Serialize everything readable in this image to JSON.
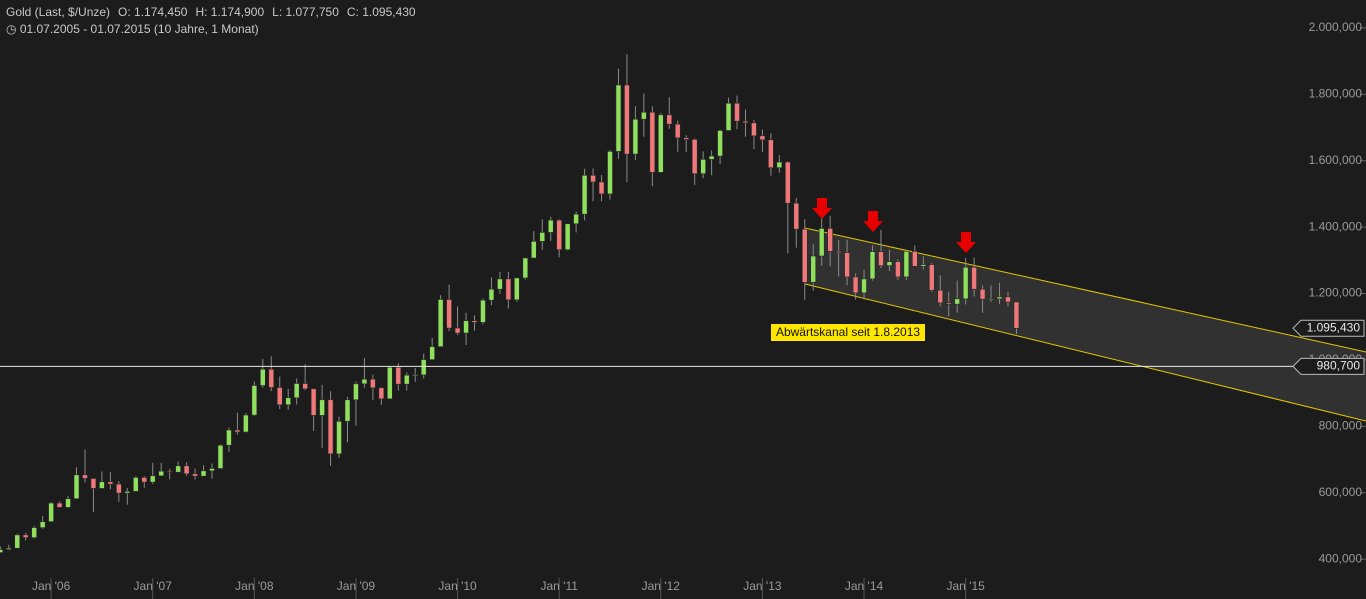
{
  "chart_data": {
    "type": "candlestick",
    "title": "Gold (Last, $/Unze)",
    "header_values": [
      "O: 1.174,450",
      "H: 1.174,900",
      "L: 1.077,750",
      "C: 1.095,430"
    ],
    "subtitle": "01.07.2005 - 01.07.2015 (10 Jahre, 1 Monat)",
    "annotation": "Abwärtskanal seit 1.8.2013",
    "x": [
      "2005-07",
      "2005-08",
      "2005-09",
      "2005-10",
      "2005-11",
      "2005-12",
      "2006-01",
      "2006-02",
      "2006-03",
      "2006-04",
      "2006-05",
      "2006-06",
      "2006-07",
      "2006-08",
      "2006-09",
      "2006-10",
      "2006-11",
      "2006-12",
      "2007-01",
      "2007-02",
      "2007-03",
      "2007-04",
      "2007-05",
      "2007-06",
      "2007-07",
      "2007-08",
      "2007-09",
      "2007-10",
      "2007-11",
      "2007-12",
      "2008-01",
      "2008-02",
      "2008-03",
      "2008-04",
      "2008-05",
      "2008-06",
      "2008-07",
      "2008-08",
      "2008-09",
      "2008-10",
      "2008-11",
      "2008-12",
      "2009-01",
      "2009-02",
      "2009-03",
      "2009-04",
      "2009-05",
      "2009-06",
      "2009-07",
      "2009-08",
      "2009-09",
      "2009-10",
      "2009-11",
      "2009-12",
      "2010-01",
      "2010-02",
      "2010-03",
      "2010-04",
      "2010-05",
      "2010-06",
      "2010-07",
      "2010-08",
      "2010-09",
      "2010-10",
      "2010-11",
      "2010-12",
      "2011-01",
      "2011-02",
      "2011-03",
      "2011-04",
      "2011-05",
      "2011-06",
      "2011-07",
      "2011-08",
      "2011-09",
      "2011-10",
      "2011-11",
      "2011-12",
      "2012-01",
      "2012-02",
      "2012-03",
      "2012-04",
      "2012-05",
      "2012-06",
      "2012-07",
      "2012-08",
      "2012-09",
      "2012-10",
      "2012-11",
      "2012-12",
      "2013-01",
      "2013-02",
      "2013-03",
      "2013-04",
      "2013-05",
      "2013-06",
      "2013-07",
      "2013-08",
      "2013-09",
      "2013-10",
      "2013-11",
      "2013-12",
      "2014-01",
      "2014-02",
      "2014-03",
      "2014-04",
      "2014-05",
      "2014-06",
      "2014-07",
      "2014-08",
      "2014-09",
      "2014-10",
      "2014-11",
      "2014-12",
      "2015-01",
      "2015-02",
      "2015-03",
      "2015-04",
      "2015-05",
      "2015-06",
      "2015-07"
    ],
    "open": [
      420,
      429,
      433,
      473,
      465,
      495,
      513,
      569,
      556,
      582,
      654,
      643,
      613,
      633,
      626,
      599,
      604,
      646,
      632,
      651,
      665,
      662,
      681,
      657,
      650,
      666,
      673,
      743,
      789,
      783,
      834,
      923,
      972,
      917,
      865,
      886,
      929,
      913,
      833,
      880,
      717,
      815,
      880,
      928,
      942,
      916,
      883,
      978,
      927,
      954,
      955,
      1001,
      1040,
      1182,
      1096,
      1081,
      1118,
      1113,
      1180,
      1213,
      1244,
      1181,
      1247,
      1307,
      1357,
      1384,
      1421,
      1332,
      1410,
      1439,
      1556,
      1536,
      1500,
      1628,
      1828,
      1620,
      1725,
      1746,
      1565,
      1738,
      1710,
      1669,
      1664,
      1561,
      1604,
      1614,
      1691,
      1773,
      1719,
      1714,
      1675,
      1663,
      1579,
      1596,
      1472,
      1394,
      1234,
      1313,
      1396,
      1327,
      1323,
      1250,
      1202,
      1244,
      1326,
      1284,
      1296,
      1250,
      1327,
      1282,
      1287,
      1210,
      1172,
      1168,
      1184,
      1279,
      1213,
      1183,
      1184,
      1190,
      1174.45
    ],
    "high": [
      439,
      443,
      477,
      479,
      500,
      530,
      572,
      574,
      590,
      677,
      730,
      640,
      664,
      663,
      635,
      614,
      650,
      650,
      690,
      690,
      672,
      694,
      692,
      673,
      683,
      688,
      746,
      796,
      841,
      840,
      935,
      1003,
      1011,
      950,
      913,
      944,
      987,
      915,
      925,
      906,
      829,
      889,
      935,
      1006,
      956,
      918,
      980,
      990,
      962,
      976,
      1019,
      1066,
      1195,
      1227,
      1161,
      1142,
      1134,
      1185,
      1249,
      1265,
      1265,
      1248,
      1307,
      1388,
      1424,
      1431,
      1424,
      1411,
      1447,
      1576,
      1577,
      1557,
      1632,
      1877,
      1921,
      1764,
      1802,
      1764,
      1744,
      1791,
      1721,
      1677,
      1667,
      1628,
      1631,
      1693,
      1790,
      1796,
      1754,
      1723,
      1694,
      1683,
      1617,
      1598,
      1488,
      1424,
      1348,
      1434,
      1434,
      1361,
      1362,
      1261,
      1271,
      1345,
      1392,
      1332,
      1303,
      1332,
      1345,
      1312,
      1292,
      1255,
      1205,
      1239,
      1307,
      1308,
      1224,
      1224,
      1232,
      1205,
      1174.9
    ],
    "low": [
      418,
      427,
      432,
      456,
      462,
      492,
      512,
      554,
      554,
      581,
      631,
      542,
      613,
      611,
      573,
      564,
      604,
      615,
      626,
      650,
      640,
      661,
      651,
      640,
      649,
      642,
      673,
      723,
      775,
      781,
      831,
      916,
      906,
      852,
      850,
      866,
      909,
      786,
      735,
      681,
      705,
      752,
      802,
      916,
      879,
      865,
      882,
      908,
      908,
      934,
      944,
      1000,
      1040,
      1087,
      1075,
      1045,
      1088,
      1107,
      1165,
      1199,
      1155,
      1175,
      1242,
      1315,
      1332,
      1358,
      1309,
      1330,
      1384,
      1420,
      1478,
      1478,
      1483,
      1605,
      1535,
      1602,
      1672,
      1523,
      1563,
      1696,
      1627,
      1626,
      1527,
      1547,
      1556,
      1590,
      1691,
      1695,
      1672,
      1635,
      1626,
      1555,
      1564,
      1321,
      1338,
      1180,
      1208,
      1284,
      1282,
      1251,
      1225,
      1182,
      1182,
      1239,
      1277,
      1268,
      1240,
      1241,
      1281,
      1273,
      1205,
      1161,
      1131,
      1142,
      1167,
      1191,
      1142,
      1175,
      1169,
      1162,
      1077.75
    ],
    "close": [
      429,
      433,
      473,
      465,
      495,
      513,
      569,
      556,
      582,
      654,
      643,
      613,
      633,
      626,
      599,
      604,
      646,
      632,
      651,
      665,
      662,
      681,
      657,
      650,
      666,
      673,
      743,
      789,
      783,
      834,
      923,
      972,
      917,
      865,
      886,
      929,
      913,
      833,
      880,
      717,
      815,
      880,
      928,
      942,
      916,
      883,
      978,
      927,
      954,
      955,
      1001,
      1040,
      1182,
      1096,
      1081,
      1118,
      1113,
      1180,
      1213,
      1244,
      1181,
      1247,
      1307,
      1357,
      1384,
      1421,
      1332,
      1410,
      1439,
      1556,
      1536,
      1500,
      1628,
      1828,
      1620,
      1725,
      1746,
      1565,
      1738,
      1710,
      1669,
      1664,
      1561,
      1604,
      1614,
      1691,
      1773,
      1719,
      1714,
      1675,
      1663,
      1579,
      1596,
      1472,
      1394,
      1234,
      1313,
      1396,
      1327,
      1323,
      1250,
      1202,
      1244,
      1326,
      1284,
      1296,
      1250,
      1327,
      1282,
      1287,
      1210,
      1172,
      1168,
      1184,
      1279,
      1213,
      1183,
      1184,
      1190,
      1174.45,
      1095.43
    ],
    "up_color": "#8fe05c",
    "down_color": "#f07878",
    "ylim": [
      280,
      2084
    ],
    "yticks": [
      {
        "value": 400,
        "label": "400,000"
      },
      {
        "value": 600,
        "label": "600,000"
      },
      {
        "value": 800,
        "label": "800,000"
      },
      {
        "value": 1000,
        "label": "1.000,000"
      },
      {
        "value": 1200,
        "label": "1.200,000"
      },
      {
        "value": 1400,
        "label": "1.400,000"
      },
      {
        "value": 1600,
        "label": "1.600,000"
      },
      {
        "value": 1800,
        "label": "1.800,000"
      },
      {
        "value": 2000,
        "label": "2.000,000"
      }
    ],
    "xticks": [
      {
        "value": "2006-01",
        "label": "Jan '06"
      },
      {
        "value": "2007-01",
        "label": "Jan '07"
      },
      {
        "value": "2008-01",
        "label": "Jan '08"
      },
      {
        "value": "2009-01",
        "label": "Jan '09"
      },
      {
        "value": "2010-01",
        "label": "Jan '10"
      },
      {
        "value": "2011-01",
        "label": "Jan '11"
      },
      {
        "value": "2012-01",
        "label": "Jan '12"
      },
      {
        "value": "2013-01",
        "label": "Jan '13"
      },
      {
        "value": "2014-01",
        "label": "Jan '14"
      },
      {
        "value": "2015-01",
        "label": "Jan '15"
      }
    ],
    "price_tags": [
      {
        "value": 1095.43,
        "label": "1.095,430"
      },
      {
        "value": 980.7,
        "label": "980,700"
      }
    ],
    "hline": 980.7
  }
}
